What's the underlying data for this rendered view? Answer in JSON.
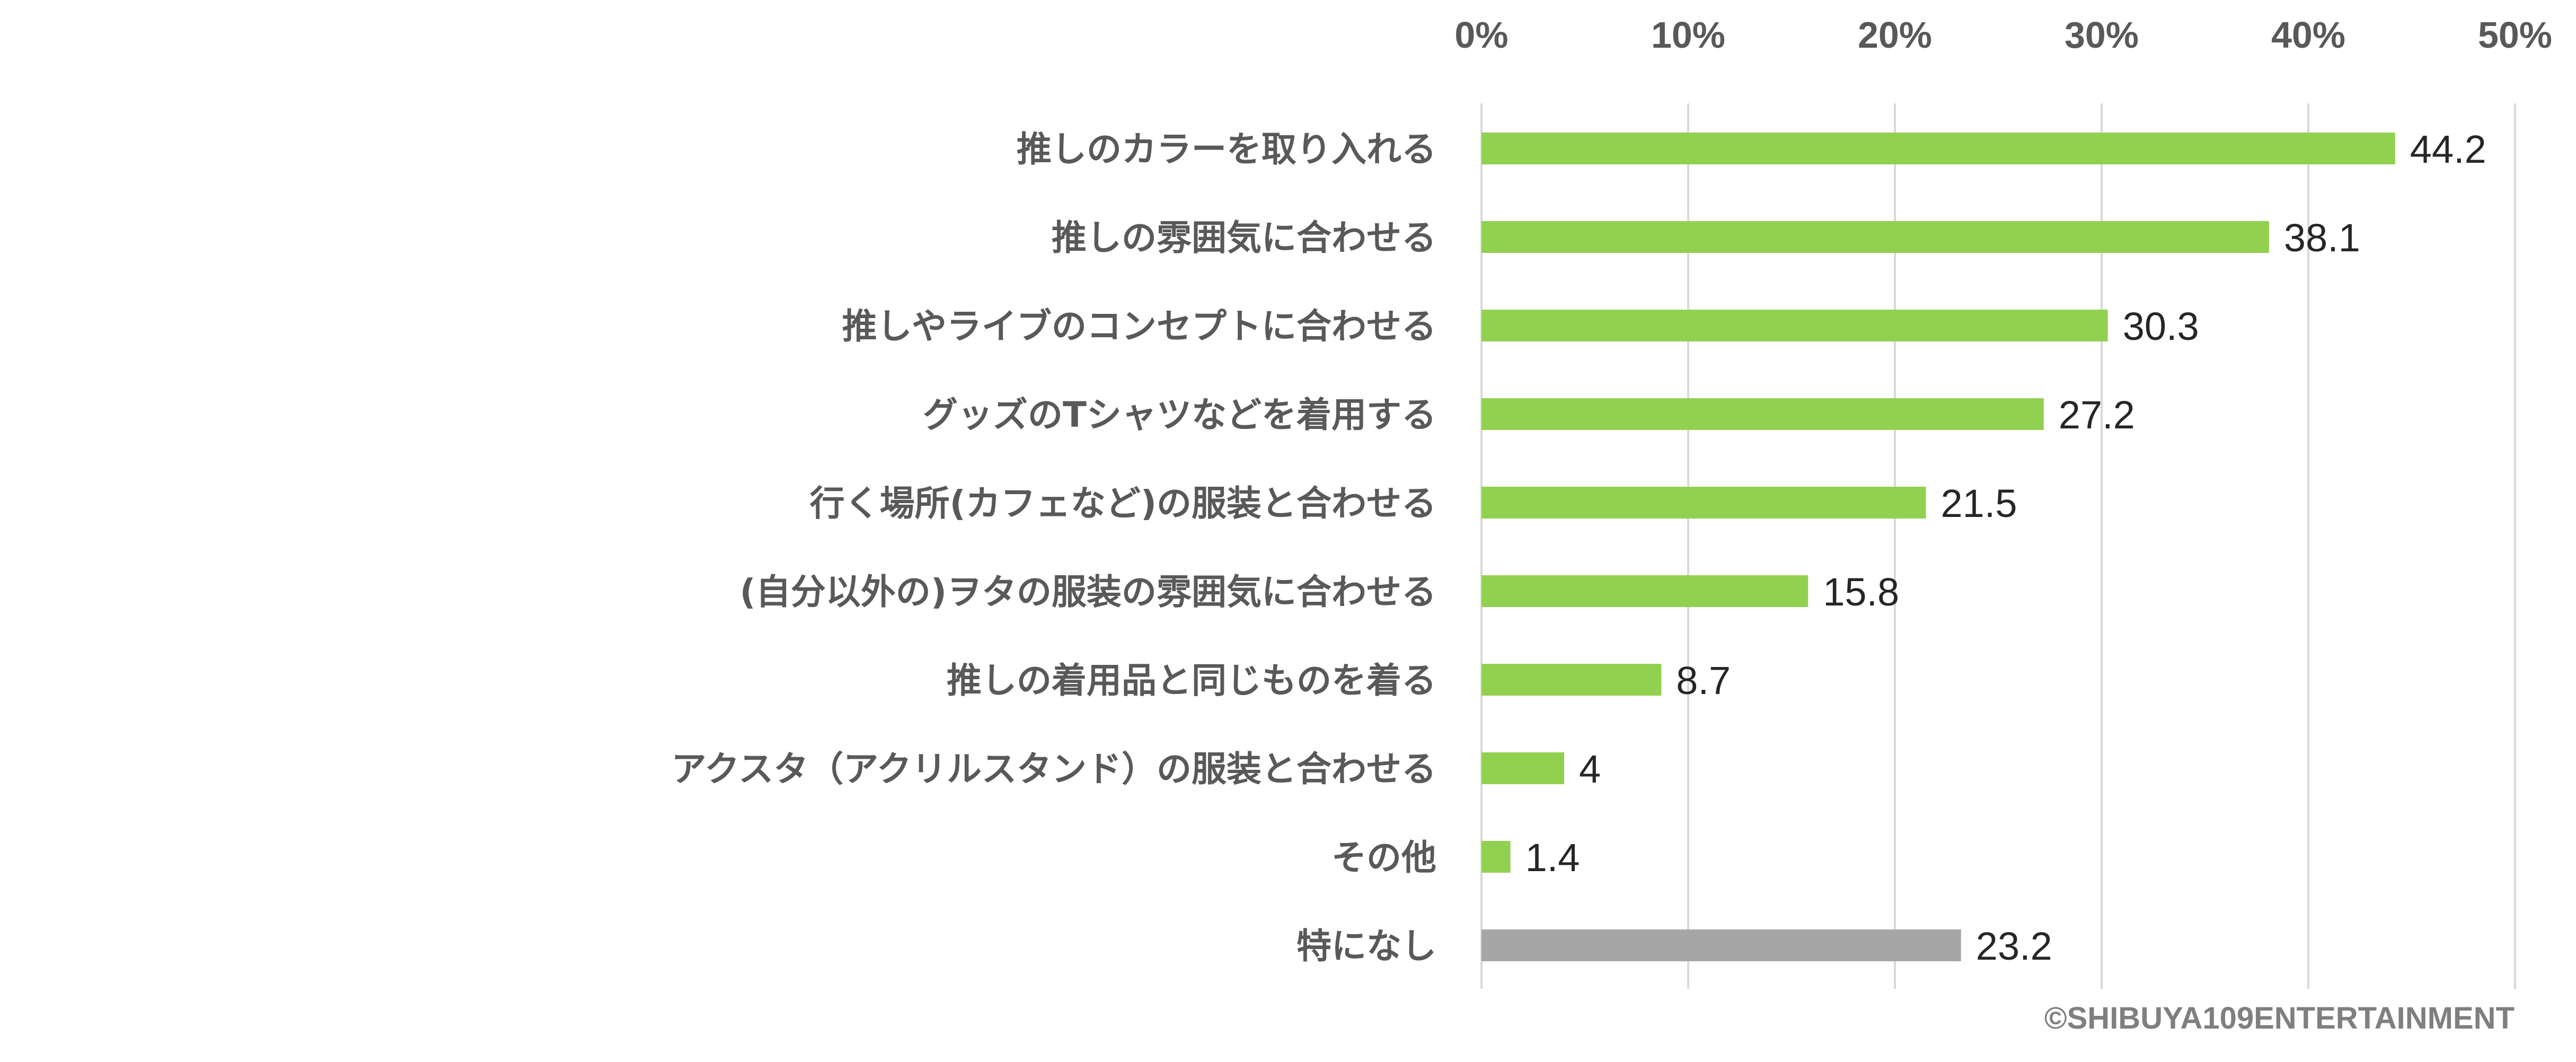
{
  "chart_data": {
    "type": "bar",
    "orientation": "horizontal",
    "title": "",
    "xlabel": "",
    "ylabel": "",
    "xlim": [
      0,
      50
    ],
    "tick_values": [
      0,
      10,
      20,
      30,
      40,
      50
    ],
    "tick_labels": [
      "0%",
      "10%",
      "20%",
      "30%",
      "40%",
      "50%"
    ],
    "axis_position": "top",
    "grid": true,
    "legend": "none",
    "categories": [
      "推しのカラーを取り入れる",
      "推しの雰囲気に合わせる",
      "推しやライブのコンセプトに合わせる",
      "グッズのTシャツなどを着用する",
      "行く場所(カフェなど)の服装と合わせる",
      "(自分以外の)ヲタの服装の雰囲気に合わせる",
      "推しの着用品と同じものを着る",
      "アクスタ（アクリルスタンド）の服装と合わせる",
      "その他",
      "特になし"
    ],
    "values": [
      44.2,
      38.1,
      30.3,
      27.2,
      21.5,
      15.8,
      8.7,
      4,
      1.4,
      23.2
    ],
    "value_labels": [
      "44.2",
      "38.1",
      "30.3",
      "27.2",
      "21.5",
      "15.8",
      "8.7",
      "4",
      "1.4",
      "23.2"
    ],
    "colors": [
      "#92d050",
      "#92d050",
      "#92d050",
      "#92d050",
      "#92d050",
      "#92d050",
      "#92d050",
      "#92d050",
      "#92d050",
      "#a6a6a6"
    ]
  },
  "copyright": "©SHIBUYA109ENTERTAINMENT"
}
